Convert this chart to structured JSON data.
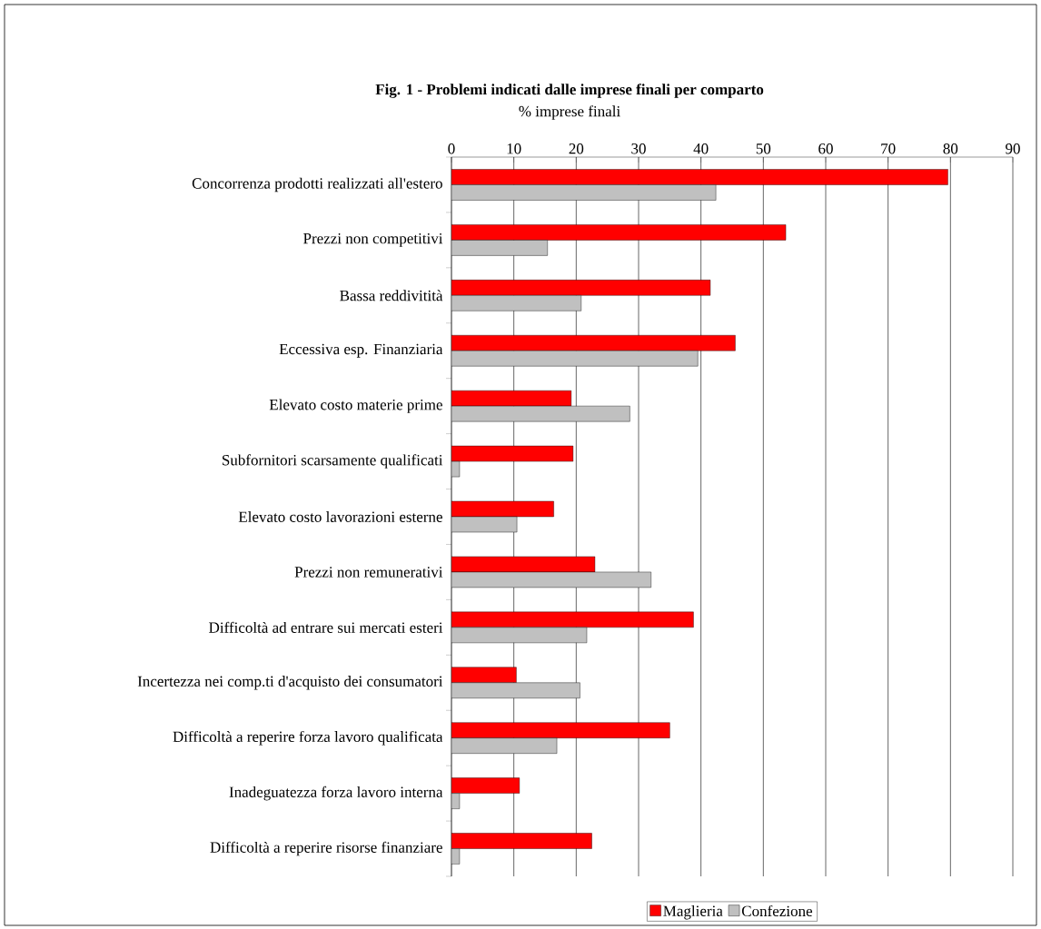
{
  "chart_data": {
    "type": "bar",
    "orientation": "horizontal",
    "title": "Fig. 1 - Problemi indicati dalle imprese finali per comparto",
    "subtitle": "% imprese finali",
    "categories": [
      "Concorrenza prodotti realizzati all'estero",
      "Prezzi non competitivi",
      "Bassa reddivitità",
      "Eccessiva esp. Finanziaria",
      "Elevato costo materie prime",
      "Subfornitori scarsamente qualificati",
      "Elevato costo lavorazioni esterne",
      "Prezzi non remunerativi",
      "Difficoltà ad entrare sui mercati esteri",
      "Incertezza nei comp.ti d'acquisto dei consumatori",
      "Difficoltà a reperire forza lavoro qualificata",
      "Inadeguatezza forza lavoro interna",
      "Difficoltà a reperire risorse finanziare"
    ],
    "series": [
      {
        "name": "Maglieria",
        "color": "#ff0000",
        "values": [
          79.6,
          53.6,
          41.5,
          45.5,
          19.2,
          19.5,
          16.4,
          23.0,
          38.8,
          10.4,
          35.0,
          10.9,
          22.5
        ]
      },
      {
        "name": "Confezione",
        "color": "#c0c0c0",
        "values": [
          42.4,
          15.4,
          20.8,
          39.5,
          28.6,
          1.3,
          10.5,
          32.0,
          21.7,
          20.6,
          16.9,
          1.3,
          1.3
        ]
      }
    ],
    "xlim": [
      0,
      90
    ],
    "xticks": [
      0,
      10,
      20,
      30,
      40,
      50,
      60,
      70,
      80,
      90
    ],
    "grid": "x",
    "legend": "bottom"
  }
}
